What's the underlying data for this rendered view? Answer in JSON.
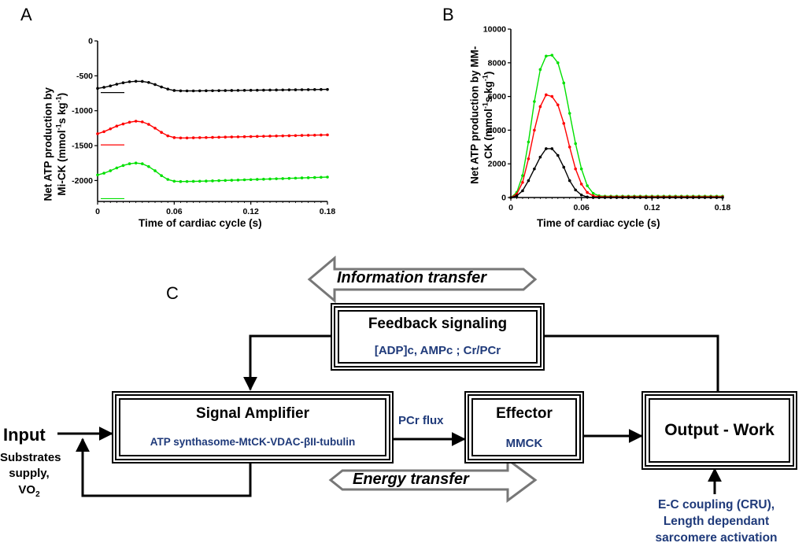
{
  "panel_labels": {
    "a": "A",
    "b": "B",
    "c": "C"
  },
  "colors": {
    "black": "#000000",
    "red": "#ff0000",
    "green": "#00e000",
    "label_blue": "#1f3a7a",
    "arrow_gray": "#777777"
  },
  "chart_data": [
    {
      "panel": "A",
      "type": "line",
      "ylabel_line1": "Net ATP production by",
      "ylabel_line2": "Mi-CK (mmol",
      "ylabel_sup1": "-1",
      "ylabel_mid": "s kg",
      "ylabel_sup2": "-1",
      "ylabel_end": ")",
      "xlabel": "Time of cardiac cycle (s)",
      "xlim": [
        0,
        0.18
      ],
      "ylim": [
        -2300,
        0
      ],
      "xticks": [
        "0",
        "0.06",
        "0.12",
        "0.18"
      ],
      "yticks": [
        "0",
        "-500",
        "-1000",
        "-1500",
        "-2000"
      ],
      "ytick_values": [
        0,
        -500,
        -1000,
        -1500,
        -2000
      ],
      "xtick_values": [
        0,
        0.06,
        0.12,
        0.18
      ],
      "series": [
        {
          "color": "#000000",
          "x": [
            0,
            0.005,
            0.01,
            0.015,
            0.02,
            0.025,
            0.03,
            0.035,
            0.04,
            0.045,
            0.05,
            0.055,
            0.06,
            0.065,
            0.07,
            0.075,
            0.08,
            0.085,
            0.09,
            0.095,
            0.1,
            0.105,
            0.11,
            0.115,
            0.12,
            0.125,
            0.13,
            0.135,
            0.14,
            0.145,
            0.15,
            0.155,
            0.16,
            0.165,
            0.17,
            0.175,
            0.18
          ],
          "values": [
            -680,
            -665,
            -645,
            -620,
            -600,
            -585,
            -578,
            -580,
            -595,
            -625,
            -660,
            -690,
            -710,
            -715,
            -716,
            -716,
            -715,
            -714,
            -713,
            -712,
            -711,
            -710,
            -709,
            -708,
            -707,
            -706,
            -705,
            -704,
            -703,
            -702,
            -701,
            -700,
            -699,
            -698,
            -697,
            -696,
            -695
          ],
          "marker_value": -740
        },
        {
          "color": "#ff0000",
          "x": [
            0,
            0.005,
            0.01,
            0.015,
            0.02,
            0.025,
            0.03,
            0.035,
            0.04,
            0.045,
            0.05,
            0.055,
            0.06,
            0.065,
            0.07,
            0.075,
            0.08,
            0.085,
            0.09,
            0.095,
            0.1,
            0.105,
            0.11,
            0.115,
            0.12,
            0.125,
            0.13,
            0.135,
            0.14,
            0.145,
            0.15,
            0.155,
            0.16,
            0.165,
            0.17,
            0.175,
            0.18
          ],
          "values": [
            -1330,
            -1300,
            -1260,
            -1220,
            -1190,
            -1165,
            -1150,
            -1160,
            -1195,
            -1250,
            -1310,
            -1360,
            -1385,
            -1390,
            -1390,
            -1388,
            -1386,
            -1384,
            -1382,
            -1380,
            -1378,
            -1376,
            -1374,
            -1372,
            -1370,
            -1368,
            -1366,
            -1364,
            -1362,
            -1360,
            -1358,
            -1356,
            -1354,
            -1352,
            -1350,
            -1348,
            -1346
          ],
          "marker_value": -1490
        },
        {
          "color": "#00e000",
          "x": [
            0,
            0.005,
            0.01,
            0.015,
            0.02,
            0.025,
            0.03,
            0.035,
            0.04,
            0.045,
            0.05,
            0.055,
            0.06,
            0.065,
            0.07,
            0.075,
            0.08,
            0.085,
            0.09,
            0.095,
            0.1,
            0.105,
            0.11,
            0.115,
            0.12,
            0.125,
            0.13,
            0.135,
            0.14,
            0.145,
            0.15,
            0.155,
            0.16,
            0.165,
            0.17,
            0.175,
            0.18
          ],
          "values": [
            -1920,
            -1895,
            -1860,
            -1820,
            -1785,
            -1760,
            -1750,
            -1760,
            -1800,
            -1860,
            -1930,
            -1985,
            -2010,
            -2015,
            -2014,
            -2012,
            -2010,
            -2008,
            -2005,
            -2002,
            -1999,
            -1996,
            -1993,
            -1990,
            -1987,
            -1984,
            -1981,
            -1978,
            -1975,
            -1972,
            -1969,
            -1966,
            -1963,
            -1960,
            -1957,
            -1954,
            -1951
          ],
          "marker_value": -2260
        }
      ]
    },
    {
      "panel": "B",
      "type": "line",
      "ylabel_line1": "Net ATP production by MM-",
      "ylabel_line2": "CK (mmol",
      "ylabel_sup1": "-1",
      "ylabel_mid": "s kg",
      "ylabel_sup2": "-1",
      "ylabel_end": ")",
      "xlabel": "Time of cardiac cycle (s)",
      "xlim": [
        0,
        0.18
      ],
      "ylim": [
        0,
        10000
      ],
      "xticks": [
        "0",
        "0.06",
        "0.12",
        "0.18"
      ],
      "yticks": [
        "0",
        "2000",
        "4000",
        "6000",
        "8000",
        "10000"
      ],
      "ytick_values": [
        0,
        2000,
        4000,
        6000,
        8000,
        10000
      ],
      "xtick_values": [
        0,
        0.06,
        0.12,
        0.18
      ],
      "series": [
        {
          "color": "#00e000",
          "x": [
            0,
            0.005,
            0.01,
            0.015,
            0.02,
            0.025,
            0.03,
            0.035,
            0.04,
            0.045,
            0.05,
            0.055,
            0.06,
            0.065,
            0.07,
            0.075,
            0.08,
            0.085,
            0.09,
            0.095,
            0.1,
            0.105,
            0.11,
            0.115,
            0.12,
            0.125,
            0.13,
            0.135,
            0.14,
            0.145,
            0.15,
            0.155,
            0.16,
            0.165,
            0.17,
            0.175,
            0.18
          ],
          "values": [
            0,
            300,
            1300,
            3300,
            5700,
            7600,
            8400,
            8450,
            8000,
            6800,
            5000,
            3200,
            1700,
            700,
            250,
            100,
            80,
            80,
            80,
            80,
            80,
            80,
            80,
            80,
            80,
            80,
            80,
            80,
            80,
            80,
            80,
            80,
            80,
            80,
            80,
            80,
            80
          ]
        },
        {
          "color": "#ff0000",
          "x": [
            0,
            0.005,
            0.01,
            0.015,
            0.02,
            0.025,
            0.03,
            0.035,
            0.04,
            0.045,
            0.05,
            0.055,
            0.06,
            0.065,
            0.07,
            0.075,
            0.08,
            0.085,
            0.09,
            0.095,
            0.1,
            0.105,
            0.11,
            0.115,
            0.12,
            0.125,
            0.13,
            0.135,
            0.14,
            0.145,
            0.15,
            0.155,
            0.16,
            0.165,
            0.17,
            0.175,
            0.18
          ],
          "values": [
            0,
            200,
            900,
            2300,
            4000,
            5400,
            6100,
            6000,
            5500,
            4400,
            3000,
            1700,
            800,
            300,
            100,
            50,
            40,
            40,
            40,
            40,
            40,
            40,
            40,
            40,
            40,
            40,
            40,
            40,
            40,
            40,
            40,
            40,
            40,
            40,
            40,
            40,
            40
          ]
        },
        {
          "color": "#000000",
          "x": [
            0,
            0.005,
            0.01,
            0.015,
            0.02,
            0.025,
            0.03,
            0.035,
            0.04,
            0.045,
            0.05,
            0.055,
            0.06,
            0.065,
            0.07,
            0.075,
            0.08,
            0.085,
            0.09,
            0.095,
            0.1,
            0.105,
            0.11,
            0.115,
            0.12,
            0.125,
            0.13,
            0.135,
            0.14,
            0.145,
            0.15,
            0.155,
            0.16,
            0.165,
            0.17,
            0.175,
            0.18
          ],
          "values": [
            0,
            100,
            400,
            1000,
            1700,
            2400,
            2900,
            2900,
            2500,
            1800,
            1000,
            450,
            150,
            30,
            0,
            0,
            0,
            0,
            0,
            0,
            0,
            0,
            0,
            0,
            0,
            0,
            0,
            0,
            0,
            0,
            0,
            0,
            0,
            0,
            0,
            0,
            0
          ]
        }
      ]
    }
  ],
  "diagram": {
    "info_transfer": "Information transfer",
    "energy_transfer": "Energy transfer",
    "feedback": {
      "title": "Feedback signaling",
      "sub": "[ADP]c, AMPc ; Cr/PCr"
    },
    "amplifier": {
      "title": "Signal Amplifier",
      "sub": "ATP synthasome-MtCK-VDAC-βII-tubulin"
    },
    "effector": {
      "title": "Effector",
      "sub": "MMCK"
    },
    "output": {
      "title": "Output - Work"
    },
    "pcr_flux": "PCr flux",
    "input": {
      "title": "Input",
      "line1": "Substrates",
      "line2": "supply,",
      "line3": "VO",
      "line3_sub": "2"
    },
    "ec": {
      "line1": "E-C coupling (CRU),",
      "line2": "Length dependant",
      "line3": "sarcomere activation"
    }
  }
}
